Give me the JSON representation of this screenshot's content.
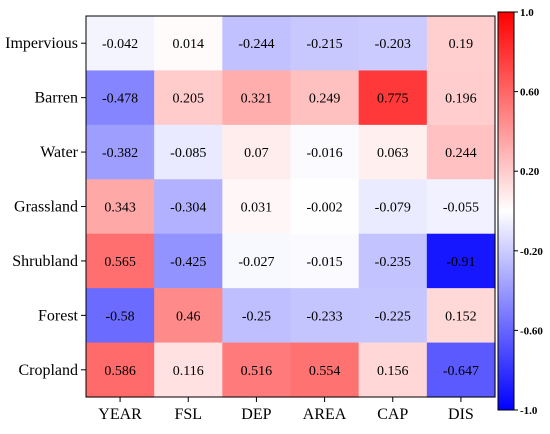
{
  "chart_data": {
    "type": "heatmap",
    "title": "",
    "xlabel": "",
    "ylabel": "",
    "x_categories": [
      "YEAR",
      "FSL",
      "DEP",
      "AREA",
      "CAP",
      "DIS"
    ],
    "y_categories": [
      "Impervious",
      "Barren",
      "Water",
      "Grassland",
      "Shrubland",
      "Forest",
      "Cropland"
    ],
    "values": [
      [
        -0.042,
        0.014,
        -0.244,
        -0.215,
        -0.203,
        0.19
      ],
      [
        -0.478,
        0.205,
        0.321,
        0.249,
        0.775,
        0.196
      ],
      [
        -0.382,
        -0.085,
        0.07,
        -0.016,
        0.063,
        0.244
      ],
      [
        0.343,
        -0.304,
        0.031,
        -0.002,
        -0.079,
        -0.055
      ],
      [
        0.565,
        -0.425,
        -0.027,
        -0.015,
        -0.235,
        -0.91
      ],
      [
        -0.58,
        0.46,
        -0.25,
        -0.233,
        -0.225,
        0.152
      ],
      [
        0.586,
        0.116,
        0.516,
        0.554,
        0.156,
        -0.647
      ]
    ],
    "value_labels": [
      [
        "-0.042",
        "0.014",
        "-0.244",
        "-0.215",
        "-0.203",
        "0.19"
      ],
      [
        "-0.478",
        "0.205",
        "0.321",
        "0.249",
        "0.775",
        "0.196"
      ],
      [
        "-0.382",
        "-0.085",
        "0.07",
        "-0.016",
        "0.063",
        "0.244"
      ],
      [
        "0.343",
        "-0.304",
        "0.031",
        "-0.002",
        "-0.079",
        "-0.055"
      ],
      [
        "0.565",
        "-0.425",
        "-0.027",
        "-0.015",
        "-0.235",
        "-0.91"
      ],
      [
        "-0.58",
        "0.46",
        "-0.25",
        "-0.233",
        "-0.225",
        "0.152"
      ],
      [
        "0.586",
        "0.116",
        "0.516",
        "0.554",
        "0.156",
        "-0.647"
      ]
    ],
    "colorbar": {
      "range": [
        -1.0,
        1.0
      ],
      "ticks": [
        1.0,
        0.6,
        0.2,
        -0.2,
        -0.6,
        -1.0
      ],
      "tick_labels": [
        "1.0",
        "0.60",
        "0.20",
        "-0.20",
        "-0.60",
        "-1.0"
      ],
      "colors": {
        "negative": "#0000ff",
        "neutral": "#ffffff",
        "positive": "#ff0000"
      }
    },
    "grid": false,
    "legend": "right"
  }
}
